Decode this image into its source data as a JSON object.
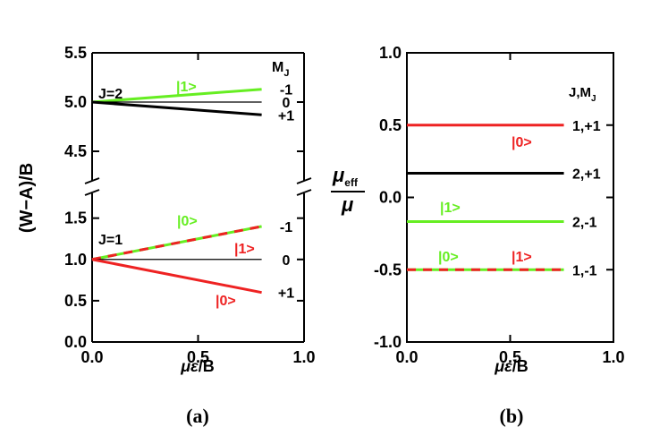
{
  "chart_data": [
    {
      "type": "line",
      "panel_label": "(a)",
      "xlabel": "με/B",
      "ylabel": "(W−A)/B",
      "xlim": [
        0.0,
        1.0
      ],
      "ylim_lower": [
        0.0,
        1.8
      ],
      "ylim_upper": [
        4.2,
        5.5
      ],
      "broken_y_axis": true,
      "x_ticks": [
        "0.0",
        "0.5",
        "1.0"
      ],
      "y_ticks_upper": [
        "4.5",
        "5.0",
        "5.5"
      ],
      "y_ticks_lower": [
        "0.0",
        "0.5",
        "1.0",
        "1.5"
      ],
      "group_labels": [
        "J=2",
        "J=1"
      ],
      "column_header": "M_J",
      "series": [
        {
          "group": "J=2",
          "label": "-1",
          "state": "|1>",
          "color": "#66ee22",
          "x": [
            0.0,
            0.8
          ],
          "y": [
            5.0,
            5.13
          ]
        },
        {
          "group": "J=2",
          "label": "0",
          "color": "#000000",
          "x": [
            0.0,
            0.8
          ],
          "y": [
            5.0,
            5.0
          ]
        },
        {
          "group": "J=2",
          "label": "+1",
          "color": "#000000",
          "x": [
            0.0,
            0.8
          ],
          "y": [
            5.0,
            4.87
          ]
        },
        {
          "group": "J=1",
          "label": "-1",
          "state": "|0> |1>",
          "color": "#66ee22",
          "dash_color": "#ee2222",
          "x": [
            0.0,
            0.8
          ],
          "y": [
            1.0,
            1.4
          ]
        },
        {
          "group": "J=1",
          "label": "0",
          "color": "#000000",
          "x": [
            0.0,
            0.8
          ],
          "y": [
            1.0,
            1.0
          ]
        },
        {
          "group": "J=1",
          "label": "+1",
          "state": "|0>",
          "color": "#ee2222",
          "x": [
            0.0,
            0.8
          ],
          "y": [
            1.0,
            0.6
          ]
        }
      ]
    },
    {
      "type": "line",
      "panel_label": "(b)",
      "xlabel": "με/B",
      "ylabel": "μ_eff / μ",
      "xlim": [
        0.0,
        1.0
      ],
      "ylim": [
        -1.0,
        1.0
      ],
      "x_ticks": [
        "0.0",
        "0.5",
        "1.0"
      ],
      "y_ticks": [
        "-1.0",
        "-0.5",
        "0.0",
        "0.5",
        "1.0"
      ],
      "column_header": "J,M_J",
      "series": [
        {
          "label": "1,+1",
          "state": "|0>",
          "color": "#ee2222",
          "x": [
            0.0,
            0.76
          ],
          "y": [
            0.5,
            0.5
          ]
        },
        {
          "label": "2,+1",
          "color": "#000000",
          "x": [
            0.0,
            0.76
          ],
          "y": [
            0.167,
            0.167
          ]
        },
        {
          "label": "2,-1",
          "state": "|1>",
          "color": "#66ee22",
          "x": [
            0.0,
            0.76
          ],
          "y": [
            -0.167,
            -0.167
          ]
        },
        {
          "label": "1,-1",
          "state": "|0> |1>",
          "color": "#66ee22",
          "dash_color": "#ee2222",
          "x": [
            0.0,
            0.76
          ],
          "y": [
            -0.5,
            -0.5
          ]
        }
      ]
    }
  ],
  "text": {
    "a_xlabel_mu": "με",
    "a_xlabel_rest": "/B",
    "b_xlabel_mu": "με",
    "b_xlabel_rest": "/B",
    "a_ylabel": "(W−A)/B",
    "b_ylabel_num_mu": "μ",
    "b_ylabel_num_sub": "eff",
    "b_ylabel_den": "μ",
    "a_header_main": "M",
    "a_header_sub": "J",
    "b_header_main": "J,M",
    "b_header_sub": "J",
    "a_label": "(a)",
    "b_label": "(b)",
    "J2": "J=2",
    "J1": "J=1",
    "ket0": "|0>",
    "ket1": "|1>"
  },
  "colors": {
    "green": "#66ee22",
    "red": "#ee2222",
    "axis": "#000000"
  }
}
